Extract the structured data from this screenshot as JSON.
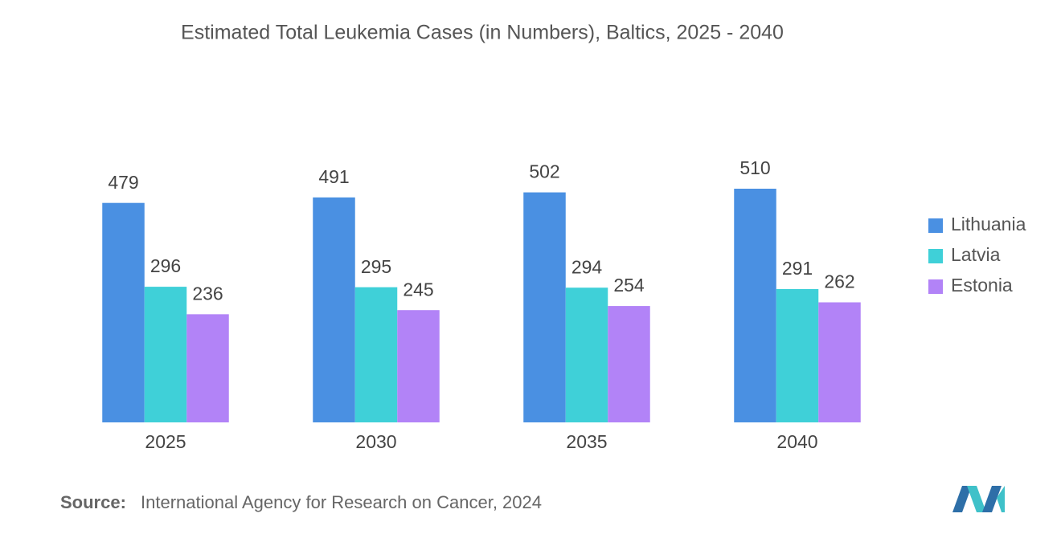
{
  "chart_data": {
    "type": "bar",
    "title": "Estimated Total Leukemia Cases (in Numbers), Baltics, 2025 - 2040",
    "categories": [
      "2025",
      "2030",
      "2035",
      "2040"
    ],
    "series": [
      {
        "name": "Lithuania",
        "color": "#4a90e2",
        "values": [
          479,
          491,
          502,
          510
        ]
      },
      {
        "name": "Latvia",
        "color": "#3fd0d8",
        "values": [
          296,
          295,
          294,
          291
        ]
      },
      {
        "name": "Estonia",
        "color": "#b283f7",
        "values": [
          236,
          245,
          254,
          262
        ]
      }
    ],
    "legend": "right",
    "source_label": "Source:",
    "source": "International Agency for Research on Cancer, 2024"
  }
}
